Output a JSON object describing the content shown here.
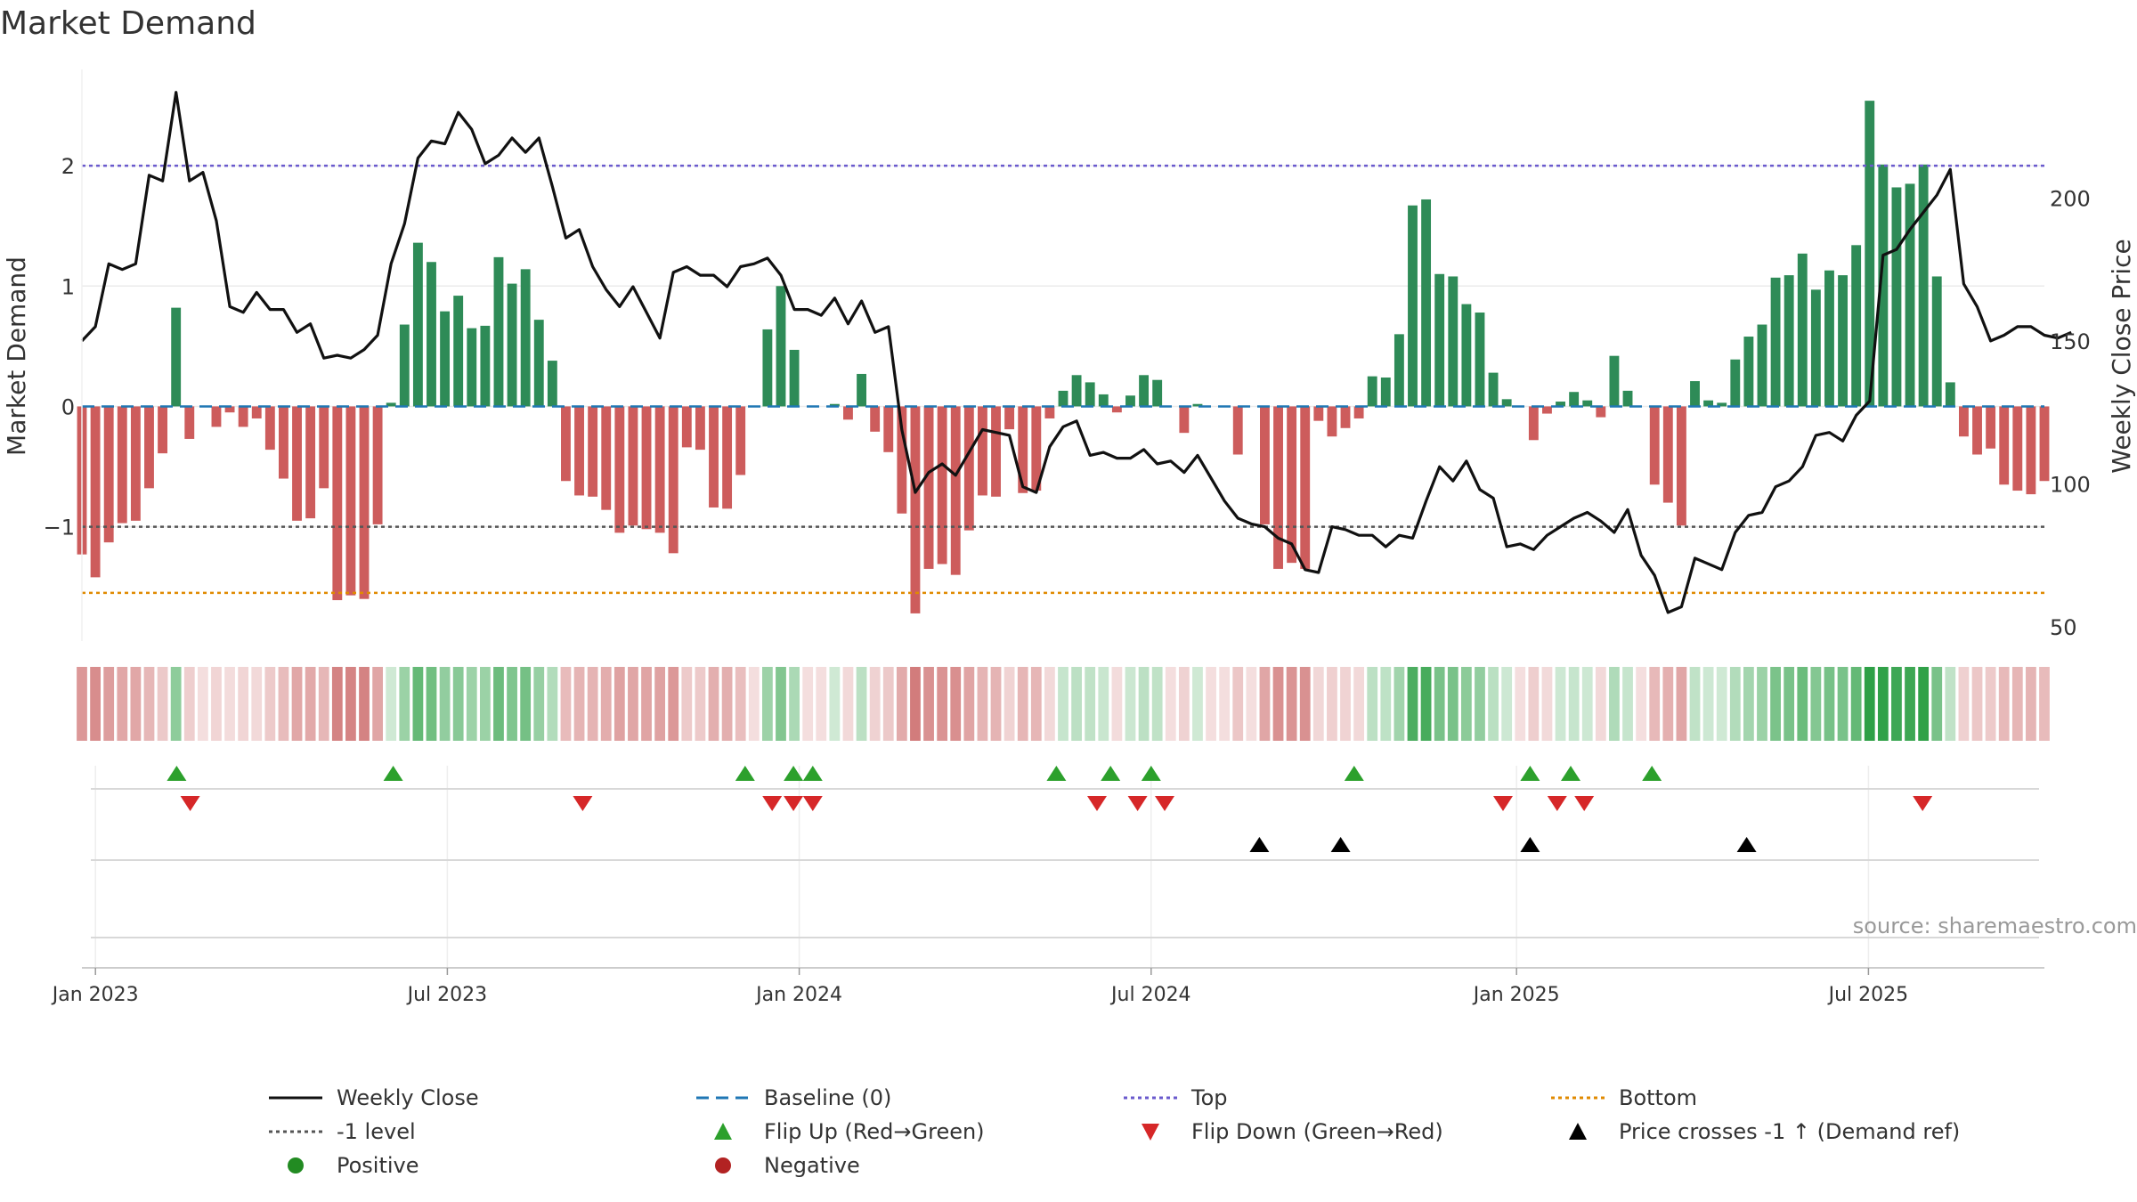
{
  "title": "Market Demand",
  "y_left_label": "Market Demand",
  "y_right_label": "Weekly Close Price",
  "y_left_ticks": [
    "2",
    "1",
    "0",
    "−1"
  ],
  "y_right_ticks": [
    "200",
    "150",
    "100",
    "50"
  ],
  "x_ticks": [
    "Jan 2023",
    "Jul 2023",
    "Jan 2024",
    "Jul 2024",
    "Jan 2025",
    "Jul 2025"
  ],
  "source": "source: sharemaestro.com",
  "colors": {
    "positive_bar": "#2e8b57",
    "negative_bar": "#cd5c5c",
    "close_line": "#111111",
    "baseline": "#1f77b4",
    "top_line": "#6a5acd",
    "minus1_line": "#555555",
    "bottom_line": "#e08a00",
    "flip_up": "#2ca02c",
    "flip_down": "#d62728",
    "cross_marker": "#000000",
    "positive_dot": "#228b22",
    "negative_dot": "#b22222"
  },
  "legend": [
    {
      "label": "Weekly Close",
      "icon": "solid-line"
    },
    {
      "label": "Baseline (0)",
      "icon": "dashed-line"
    },
    {
      "label": "Top",
      "icon": "dotted-line"
    },
    {
      "label": "Bottom",
      "icon": "dotted-line"
    },
    {
      "label": "-1 level",
      "icon": "dotted-line"
    },
    {
      "label": "Flip Up (Red→Green)",
      "icon": "triangle-up"
    },
    {
      "label": "Flip Down (Green→Red)",
      "icon": "triangle-down"
    },
    {
      "label": "Price crosses -1 ↑ (Demand ref)",
      "icon": "triangle-up"
    },
    {
      "label": "Positive",
      "icon": "dot"
    },
    {
      "label": "Negative",
      "icon": "dot"
    }
  ],
  "chart_data": {
    "type": "bar",
    "x_start": "2022-12-26",
    "x_end": "2025-10-06",
    "x_step_days": 7,
    "reference_levels": {
      "baseline": 0,
      "top": 2.0,
      "minus1": -1.0,
      "bottom": -1.55
    },
    "y_left_range": [
      -1.95,
      2.8
    ],
    "y_right_range": [
      45,
      245
    ],
    "series": [
      {
        "name": "Market Demand",
        "axis": "left",
        "values": [
          -1.23,
          -1.42,
          -1.13,
          -0.97,
          -0.95,
          -0.68,
          -0.39,
          0.82,
          -0.27,
          0.0,
          -0.17,
          -0.05,
          -0.17,
          -0.1,
          -0.36,
          -0.6,
          -0.95,
          -0.93,
          -0.68,
          -1.61,
          -1.57,
          -1.6,
          -0.98,
          0.03,
          0.68,
          1.36,
          1.2,
          0.79,
          0.92,
          0.65,
          0.67,
          1.24,
          1.02,
          1.14,
          0.72,
          0.38,
          -0.62,
          -0.74,
          -0.75,
          -0.86,
          -1.05,
          -0.99,
          -1.02,
          -1.05,
          -1.22,
          -0.34,
          -0.36,
          -0.84,
          -0.85,
          -0.57,
          0.0,
          0.64,
          1.0,
          0.47,
          0.0,
          0.0,
          0.02,
          -0.11,
          0.27,
          -0.21,
          -0.38,
          -0.89,
          -1.72,
          -1.35,
          -1.31,
          -1.4,
          -1.03,
          -0.74,
          -0.75,
          -0.19,
          -0.72,
          -0.7,
          -0.1,
          0.13,
          0.26,
          0.2,
          0.1,
          -0.05,
          0.09,
          0.26,
          0.22,
          0.0,
          -0.22,
          0.02,
          0.0,
          0.0,
          -0.4,
          0.0,
          -0.98,
          -1.35,
          -1.3,
          -1.35,
          -0.12,
          -0.25,
          -0.18,
          -0.1,
          0.25,
          0.24,
          0.6,
          1.67,
          1.72,
          1.1,
          1.08,
          0.85,
          0.78,
          0.28,
          0.06,
          0.0,
          -0.28,
          -0.06,
          0.04,
          0.12,
          0.05,
          -0.09,
          0.42,
          0.13,
          0.0,
          -0.65,
          -0.8,
          -0.99,
          0.21,
          0.05,
          0.03,
          0.39,
          0.58,
          0.68,
          1.07,
          1.09,
          1.27,
          0.97,
          1.13,
          1.09,
          1.34,
          2.54,
          2.01,
          1.82,
          1.85,
          2.01,
          1.08,
          0.2,
          -0.25,
          -0.4,
          -0.35,
          -0.65,
          -0.7,
          -0.73,
          -0.62
        ]
      },
      {
        "name": "Weekly Close",
        "axis": "right",
        "values": [
          150,
          155,
          177,
          175,
          177,
          208,
          206,
          237,
          206,
          209,
          192,
          162,
          160,
          167,
          161,
          161,
          153,
          156,
          144,
          145,
          144,
          147,
          152,
          177,
          191,
          214,
          220,
          219,
          230,
          224,
          212,
          215,
          221,
          216,
          221,
          204,
          186,
          189,
          176,
          168,
          162,
          169,
          160,
          151,
          174,
          176,
          173,
          173,
          169,
          176,
          177,
          179,
          173,
          161,
          161,
          159,
          165,
          156,
          164,
          153,
          155,
          119,
          97,
          104,
          107,
          103,
          111,
          119,
          118,
          117,
          99,
          97,
          113,
          120,
          122,
          110,
          111,
          109,
          109,
          112,
          107,
          108,
          104,
          110,
          102,
          94,
          88,
          86,
          85,
          81,
          79,
          70,
          69,
          85,
          84,
          82,
          82,
          78,
          82,
          81,
          94,
          106,
          101,
          108,
          98,
          95,
          78,
          79,
          77,
          82,
          85,
          88,
          90,
          87,
          83,
          91,
          75,
          68,
          55,
          57,
          74,
          72,
          70,
          83,
          89,
          90,
          99,
          101,
          106,
          117,
          118,
          115,
          124,
          129,
          180,
          182,
          189,
          195,
          201,
          210,
          170,
          162,
          150,
          152,
          155,
          155,
          152,
          151,
          153
        ]
      },
      {
        "name": "Flip Up (Red→Green)",
        "axis": "marker",
        "dates": [
          "2023-02-13",
          "2023-06-05",
          "2023-12-04",
          "2023-12-29",
          "2024-01-08",
          "2024-05-13",
          "2024-06-10",
          "2024-07-01",
          "2024-10-14",
          "2025-01-13",
          "2025-02-03",
          "2025-03-17"
        ]
      },
      {
        "name": "Flip Down (Green→Red)",
        "axis": "marker",
        "dates": [
          "2023-02-20",
          "2023-09-11",
          "2023-12-18",
          "2023-12-29",
          "2024-01-08",
          "2024-06-03",
          "2024-06-24",
          "2024-07-08",
          "2024-12-30",
          "2025-01-27",
          "2025-02-10",
          "2025-08-04"
        ]
      },
      {
        "name": "Price crosses -1 ↑ (Demand ref)",
        "axis": "marker",
        "dates": [
          "2024-08-26",
          "2024-10-07",
          "2025-01-13",
          "2025-05-05"
        ]
      }
    ],
    "title": "Market Demand",
    "xlabel": "",
    "ylabel": "Market Demand",
    "ylabel_right": "Weekly Close Price",
    "grid": true,
    "legend_position": "bottom"
  }
}
